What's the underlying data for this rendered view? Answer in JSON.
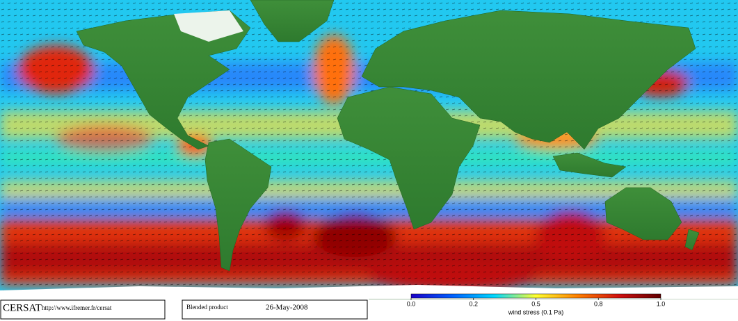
{
  "footer": {
    "logo": "CERSAT",
    "url": "http://www.ifremer.fr/cersat",
    "product": "Blended product",
    "date": "26-May-2008"
  },
  "colorbar": {
    "label": "wind stress (0.1 Pa)",
    "lim": [
      0,
      1
    ],
    "ticks": [
      {
        "value": 0,
        "label": "0.0"
      },
      0.2,
      0.5,
      0.8,
      {
        "value": 1,
        "label": "1.0"
      }
    ],
    "colors": [
      "#1a00c8",
      "#0060ff",
      "#00d8ff",
      "#ffff30",
      "#ff8000",
      "#d01010",
      "#600000"
    ]
  }
}
